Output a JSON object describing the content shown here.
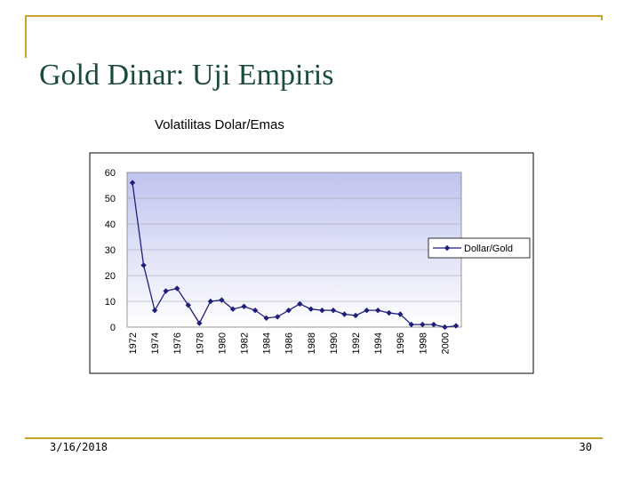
{
  "slide": {
    "title": "Gold Dinar: Uji Empiris",
    "date": "3/16/2018",
    "page_number": "30"
  },
  "colors": {
    "frame": "#c9a227",
    "title_text": "#1a4a3a",
    "series": "#1f1f7a",
    "plot_top": "#bfc3ee",
    "plot_bottom": "#ffffff"
  },
  "chart_data": {
    "type": "line",
    "title": "Volatilitas Dolar/Emas",
    "xlabel": "",
    "ylabel": "",
    "ylim": [
      0,
      60
    ],
    "yticks": [
      0,
      10,
      20,
      30,
      40,
      50,
      60
    ],
    "xlim": [
      1972,
      2001
    ],
    "xticks": [
      1972,
      1974,
      1976,
      1978,
      1980,
      1982,
      1984,
      1986,
      1988,
      1990,
      1992,
      1994,
      1996,
      1998,
      2000
    ],
    "grid": true,
    "legend": "right",
    "series": [
      {
        "name": "Dollar/Gold",
        "x": [
          1972,
          1973,
          1974,
          1975,
          1976,
          1977,
          1978,
          1979,
          1980,
          1981,
          1982,
          1983,
          1984,
          1985,
          1986,
          1987,
          1988,
          1989,
          1990,
          1991,
          1992,
          1993,
          1994,
          1995,
          1996,
          1997,
          1998,
          1999,
          2000,
          2001
        ],
        "y": [
          56,
          24,
          6.5,
          14,
          15,
          8.5,
          1.5,
          10,
          10.5,
          7,
          8,
          6.5,
          3.5,
          4,
          6.5,
          9,
          7,
          6.5,
          6.5,
          5,
          4.5,
          6.5,
          6.5,
          5.5,
          5,
          1,
          1,
          1,
          0,
          0.5
        ]
      }
    ]
  }
}
